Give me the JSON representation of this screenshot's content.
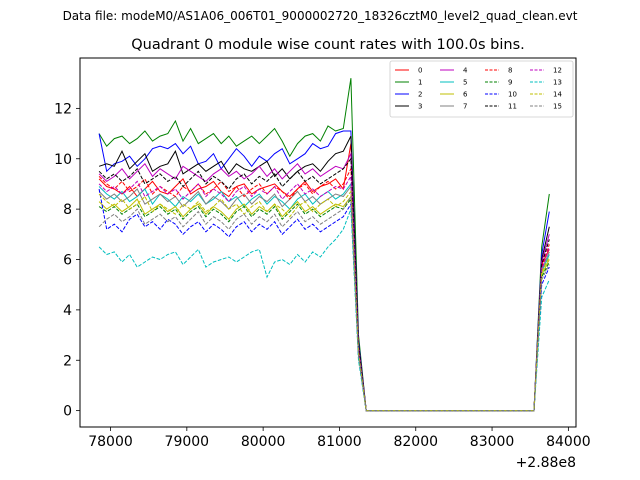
{
  "suptitle": "Data file: modeM0/AS1A06_006T01_9000002720_18326cztM0_level2_quad_clean.evt",
  "chart_data": {
    "type": "line",
    "title": "Quadrant 0 module wise count rates with 100.0s bins.",
    "xlabel": "",
    "ylabel": "",
    "x_offset_label": "+2.88e8",
    "xlim": [
      77600,
      84100
    ],
    "ylim": [
      -0.65,
      14.0
    ],
    "xticks": [
      78000,
      79000,
      80000,
      81000,
      82000,
      83000,
      84000
    ],
    "xtick_labels": [
      "78000",
      "79000",
      "80000",
      "81000",
      "82000",
      "83000",
      "84000"
    ],
    "yticks": [
      0,
      2,
      4,
      6,
      8,
      10,
      12
    ],
    "ytick_labels": [
      "0",
      "2",
      "4",
      "6",
      "8",
      "10",
      "12"
    ],
    "grid": false,
    "legend_position": "top-right",
    "gap_start": 81450,
    "gap_end": 83550,
    "x": [
      77850,
      77950,
      78050,
      78150,
      78250,
      78350,
      78450,
      78550,
      78650,
      78750,
      78850,
      78950,
      79050,
      79150,
      79250,
      79350,
      79450,
      79550,
      79650,
      79750,
      79850,
      79950,
      80050,
      80150,
      80250,
      80350,
      80450,
      80550,
      80650,
      80750,
      80850,
      80950,
      81050,
      81150,
      81250,
      81350,
      83550,
      83650,
      83750
    ],
    "series": [
      {
        "name": "0",
        "color": "#ff0000",
        "dash": "solid",
        "values": [
          9.2,
          8.9,
          8.8,
          8.6,
          8.9,
          8.5,
          8.8,
          9.1,
          8.7,
          8.6,
          8.9,
          9.2,
          8.6,
          8.8,
          8.9,
          9.1,
          8.7,
          8.5,
          8.9,
          9.0,
          8.6,
          8.8,
          8.9,
          9.0,
          8.7,
          8.5,
          8.8,
          9.1,
          8.7,
          8.9,
          9.0,
          9.2,
          8.8,
          10.6,
          2.5,
          0,
          0,
          5.8,
          6.4
        ]
      },
      {
        "name": "1",
        "color": "#008000",
        "dash": "solid",
        "values": [
          11.0,
          10.5,
          10.8,
          10.9,
          10.6,
          10.8,
          11.1,
          10.7,
          10.9,
          11.0,
          11.5,
          10.7,
          11.2,
          10.6,
          10.8,
          11.0,
          10.6,
          10.9,
          10.5,
          10.7,
          10.9,
          10.6,
          10.9,
          11.2,
          10.7,
          10.1,
          10.6,
          10.9,
          11.0,
          10.7,
          11.3,
          11.1,
          11.2,
          13.2,
          3.0,
          0,
          0,
          6.5,
          8.6
        ]
      },
      {
        "name": "2",
        "color": "#0000ff",
        "dash": "solid",
        "values": [
          11.0,
          9.5,
          9.8,
          9.9,
          10.1,
          9.7,
          10.0,
          10.4,
          10.5,
          10.4,
          10.6,
          10.2,
          10.5,
          9.8,
          9.9,
          10.2,
          9.6,
          10.0,
          10.4,
          10.1,
          9.7,
          10.1,
          9.9,
          10.2,
          10.4,
          9.8,
          10.0,
          10.2,
          10.6,
          10.4,
          10.5,
          11.0,
          11.1,
          11.1,
          2.8,
          0,
          0,
          6.2,
          7.9
        ]
      },
      {
        "name": "3",
        "color": "#000000",
        "dash": "solid",
        "values": [
          9.7,
          9.8,
          9.7,
          10.3,
          9.6,
          9.9,
          10.2,
          9.5,
          9.7,
          9.8,
          10.3,
          9.4,
          9.6,
          9.8,
          9.5,
          9.7,
          9.9,
          9.4,
          9.8,
          9.6,
          9.5,
          9.7,
          9.9,
          9.3,
          9.6,
          9.2,
          9.5,
          9.7,
          9.8,
          9.5,
          9.9,
          10.2,
          10.3,
          10.9,
          2.7,
          0,
          0,
          6.0,
          7.3
        ]
      },
      {
        "name": "4",
        "color": "#bf00bf",
        "dash": "solid",
        "values": [
          9.4,
          9.1,
          9.3,
          9.6,
          9.2,
          9.5,
          9.8,
          9.3,
          9.6,
          9.4,
          9.2,
          9.7,
          9.5,
          9.3,
          9.1,
          9.4,
          9.6,
          9.3,
          9.5,
          9.2,
          9.4,
          9.7,
          9.3,
          9.6,
          9.2,
          9.5,
          9.8,
          9.4,
          9.6,
          9.3,
          9.5,
          9.7,
          9.6,
          10.2,
          2.6,
          0,
          0,
          5.9,
          7.0
        ]
      },
      {
        "name": "5",
        "color": "#00bfbf",
        "dash": "solid",
        "values": [
          8.9,
          8.6,
          8.4,
          8.7,
          8.3,
          8.5,
          8.8,
          8.2,
          8.6,
          8.4,
          8.1,
          8.5,
          8.3,
          8.6,
          8.2,
          8.4,
          8.7,
          8.3,
          8.5,
          8.1,
          8.4,
          8.6,
          8.2,
          8.5,
          8.3,
          8.0,
          8.4,
          8.6,
          8.2,
          8.5,
          8.7,
          8.4,
          8.6,
          9.0,
          2.3,
          0,
          0,
          5.5,
          6.2
        ]
      },
      {
        "name": "6",
        "color": "#bfbf00",
        "dash": "solid",
        "values": [
          8.3,
          8.0,
          8.2,
          7.9,
          8.1,
          8.4,
          7.8,
          8.0,
          8.2,
          7.9,
          8.1,
          7.7,
          8.0,
          8.2,
          7.8,
          8.1,
          7.9,
          7.6,
          8.0,
          8.2,
          7.8,
          8.1,
          7.9,
          8.2,
          7.7,
          8.0,
          8.3,
          7.9,
          8.1,
          7.8,
          8.0,
          8.2,
          8.1,
          8.5,
          2.2,
          0,
          0,
          5.4,
          6.0
        ]
      },
      {
        "name": "7",
        "color": "#808080",
        "dash": "solid",
        "values": [
          8.7,
          8.4,
          8.6,
          8.3,
          8.5,
          8.8,
          8.2,
          8.4,
          8.6,
          8.3,
          8.5,
          8.1,
          8.4,
          8.7,
          8.2,
          8.5,
          8.3,
          8.0,
          8.4,
          8.6,
          8.2,
          8.5,
          8.3,
          8.6,
          8.1,
          8.4,
          8.7,
          8.3,
          8.5,
          8.2,
          8.4,
          8.6,
          8.5,
          8.9,
          2.3,
          0,
          0,
          5.6,
          6.3
        ]
      },
      {
        "name": "8",
        "color": "#ff0000",
        "dash": "dashed",
        "values": [
          9.3,
          9.0,
          8.8,
          9.1,
          8.7,
          8.9,
          9.2,
          8.6,
          8.9,
          8.7,
          8.5,
          8.9,
          8.7,
          9.0,
          8.6,
          8.8,
          9.1,
          8.7,
          8.9,
          8.5,
          8.8,
          9.0,
          8.6,
          8.9,
          8.7,
          8.4,
          8.8,
          9.0,
          8.6,
          8.9,
          9.1,
          8.8,
          9.0,
          9.6,
          2.5,
          0,
          0,
          5.7,
          6.6
        ]
      },
      {
        "name": "9",
        "color": "#008000",
        "dash": "dashed",
        "values": [
          8.1,
          7.9,
          8.1,
          7.8,
          8.0,
          8.2,
          7.7,
          7.9,
          8.1,
          7.8,
          8.0,
          7.6,
          7.9,
          8.1,
          7.7,
          8.0,
          7.8,
          7.5,
          7.9,
          8.1,
          7.7,
          8.0,
          7.8,
          8.1,
          7.6,
          7.9,
          8.2,
          7.8,
          8.0,
          7.7,
          7.9,
          8.1,
          8.0,
          8.4,
          2.2,
          0,
          0,
          5.3,
          5.9
        ]
      },
      {
        "name": "10",
        "color": "#0000ff",
        "dash": "dashed",
        "values": [
          8.8,
          7.2,
          7.4,
          7.1,
          7.6,
          7.8,
          7.3,
          7.5,
          7.2,
          7.6,
          7.4,
          7.0,
          7.3,
          7.5,
          7.1,
          7.4,
          7.2,
          6.9,
          7.3,
          7.5,
          7.1,
          7.4,
          7.2,
          7.5,
          7.0,
          7.3,
          7.6,
          7.2,
          7.4,
          7.1,
          7.3,
          7.5,
          7.7,
          8.2,
          2.1,
          0,
          0,
          5.0,
          5.7
        ]
      },
      {
        "name": "11",
        "color": "#000000",
        "dash": "dashed",
        "values": [
          9.5,
          9.2,
          9.4,
          9.1,
          9.3,
          9.6,
          9.0,
          9.2,
          9.4,
          9.1,
          9.3,
          8.9,
          9.2,
          9.5,
          9.0,
          9.3,
          9.1,
          8.8,
          9.2,
          9.4,
          9.0,
          9.3,
          9.1,
          9.4,
          8.9,
          9.2,
          9.5,
          9.1,
          9.3,
          9.0,
          9.2,
          9.4,
          9.6,
          10.0,
          2.6,
          0,
          0,
          5.8,
          6.8
        ]
      },
      {
        "name": "12",
        "color": "#bf00bf",
        "dash": "dashed",
        "values": [
          9.0,
          8.7,
          8.9,
          8.6,
          8.8,
          9.1,
          8.5,
          8.7,
          8.9,
          8.6,
          8.8,
          8.4,
          8.7,
          9.0,
          8.5,
          8.8,
          8.6,
          8.3,
          8.7,
          8.9,
          8.5,
          8.8,
          8.6,
          8.9,
          8.4,
          8.7,
          9.0,
          8.6,
          8.8,
          8.5,
          8.7,
          8.9,
          8.8,
          9.3,
          2.4,
          0,
          0,
          5.6,
          6.5
        ]
      },
      {
        "name": "13",
        "color": "#00bfbf",
        "dash": "dashed",
        "values": [
          6.5,
          6.2,
          6.3,
          5.9,
          6.2,
          5.7,
          5.9,
          6.1,
          6.0,
          6.2,
          6.3,
          5.8,
          6.1,
          6.4,
          5.7,
          5.9,
          6.0,
          6.1,
          5.9,
          6.1,
          6.3,
          6.4,
          5.3,
          5.9,
          6.0,
          5.8,
          6.2,
          5.9,
          6.3,
          6.1,
          6.5,
          6.8,
          7.2,
          8.0,
          2.0,
          0,
          0,
          4.5,
          5.2
        ]
      },
      {
        "name": "14",
        "color": "#bfbf00",
        "dash": "dashed",
        "values": [
          8.6,
          8.3,
          8.1,
          8.4,
          8.0,
          8.2,
          8.5,
          7.9,
          8.2,
          8.0,
          7.8,
          8.2,
          8.0,
          8.3,
          7.9,
          8.1,
          8.4,
          8.0,
          8.2,
          7.8,
          8.1,
          8.3,
          7.9,
          8.2,
          8.0,
          7.7,
          8.1,
          8.3,
          7.9,
          8.2,
          8.4,
          8.1,
          8.3,
          8.7,
          2.3,
          0,
          0,
          5.5,
          6.1
        ]
      },
      {
        "name": "15",
        "color": "#808080",
        "dash": "dashed",
        "values": [
          7.3,
          7.6,
          7.8,
          7.5,
          7.7,
          8.0,
          7.4,
          7.6,
          7.8,
          7.5,
          7.7,
          7.3,
          7.6,
          7.9,
          7.4,
          7.7,
          7.5,
          7.2,
          7.6,
          7.8,
          7.4,
          7.7,
          7.5,
          7.8,
          7.3,
          7.6,
          7.9,
          7.5,
          7.7,
          7.4,
          7.6,
          7.8,
          8.0,
          8.5,
          2.2,
          0,
          0,
          5.2,
          5.8
        ]
      }
    ]
  }
}
